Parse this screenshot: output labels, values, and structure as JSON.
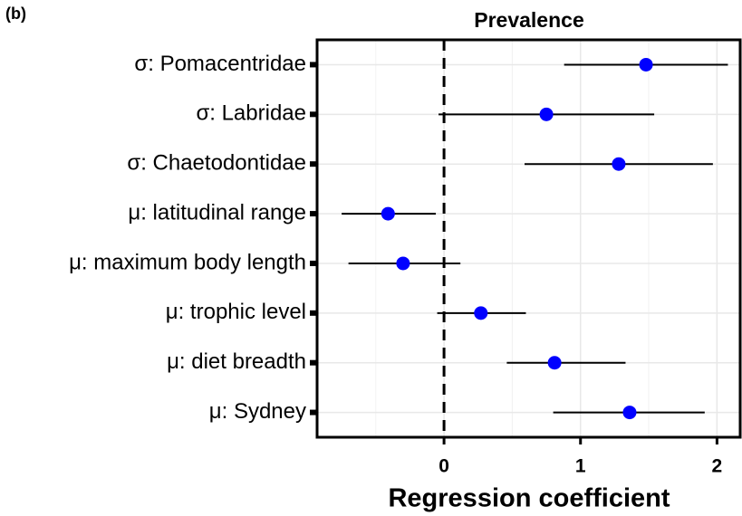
{
  "chart_data": {
    "type": "dot_interval",
    "panel_label": "(b)",
    "title": "Prevalence",
    "xlabel": "Regression coefficient",
    "categories": [
      "σ: Pomacentridae",
      "σ: Labridae",
      "σ: Chaetodontidae",
      "μ: latitudinal range",
      "μ: maximum body length",
      "μ: trophic level",
      "μ: diet breadth",
      "μ: Sydney"
    ],
    "series": [
      {
        "color": "#0000ff",
        "values": [
          1.48,
          0.75,
          1.28,
          -0.41,
          -0.3,
          0.27,
          0.81,
          1.36
        ],
        "lower": [
          0.88,
          -0.04,
          0.59,
          -0.75,
          -0.7,
          -0.05,
          0.46,
          0.8
        ],
        "upper": [
          2.08,
          1.54,
          1.97,
          -0.06,
          0.12,
          0.6,
          1.33,
          1.91
        ]
      }
    ],
    "xlim": [
      -0.93,
      2.17
    ],
    "xticks": [
      0,
      1,
      2
    ],
    "reference_line": 0,
    "grid": true
  }
}
